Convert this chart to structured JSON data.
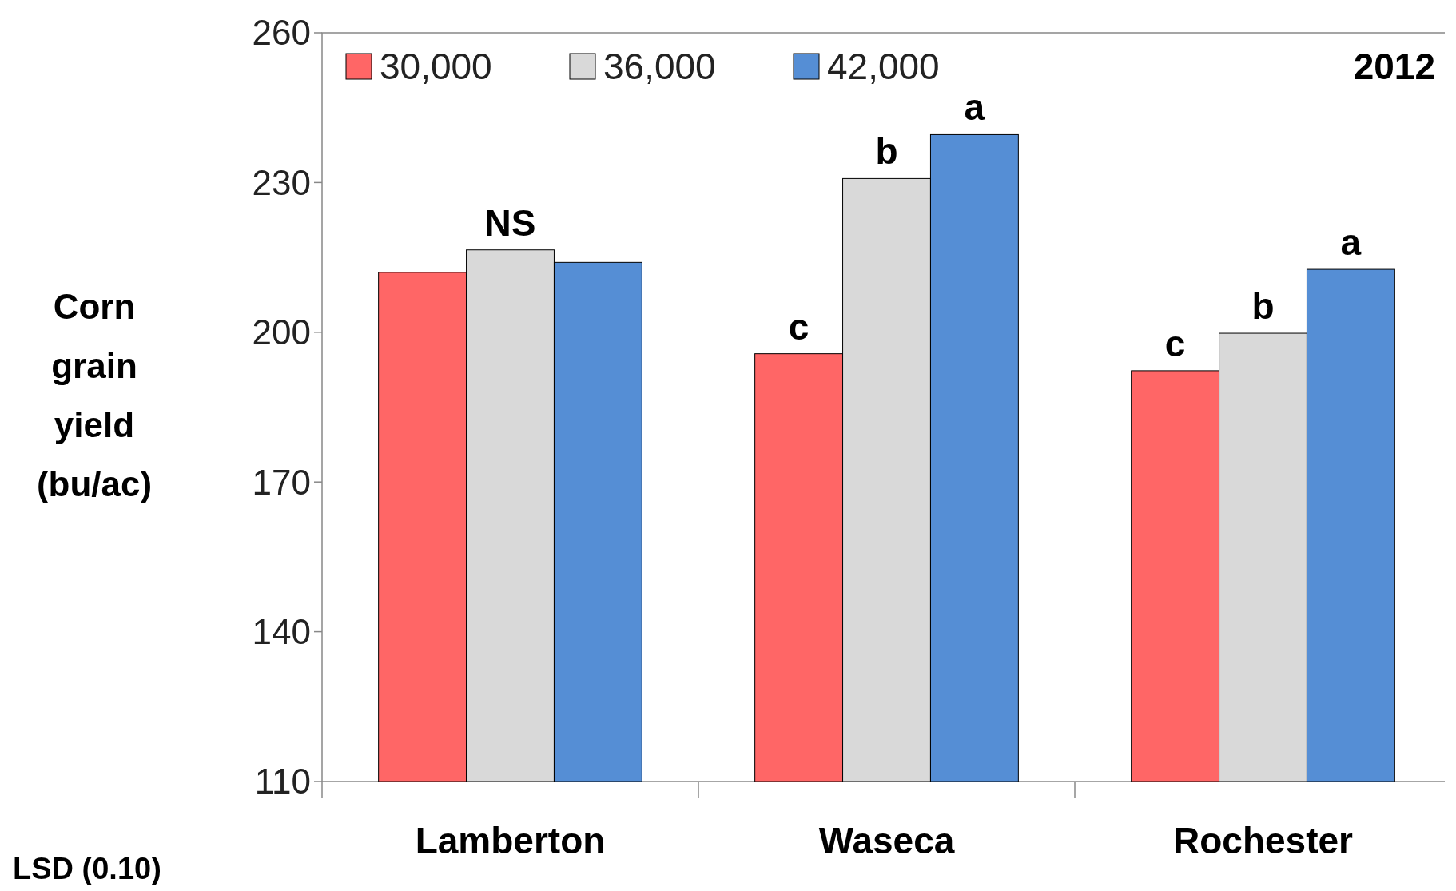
{
  "chart_data": {
    "type": "bar",
    "ylabel": "Corn grain yield (bu/ac)",
    "categories": [
      "Lamberton",
      "Waseca",
      "Rochester"
    ],
    "series": [
      {
        "name": "30,000",
        "color": "#ff6666",
        "values": [
          212,
          195.7,
          192.3
        ],
        "value_labels": [
          null,
          "c",
          "c"
        ]
      },
      {
        "name": "36,000",
        "color": "#d9d9d9",
        "values": [
          216.5,
          230.8,
          199.8
        ],
        "value_labels": [
          "NS",
          "b",
          "b"
        ]
      },
      {
        "name": "42,000",
        "color": "#558ed5",
        "values": [
          214,
          239.6,
          212.6
        ],
        "value_labels": [
          null,
          "a",
          "a"
        ]
      }
    ],
    "ylim": [
      110,
      260
    ],
    "yticks": [
      110,
      140,
      170,
      200,
      230,
      260
    ],
    "grid": false,
    "legend": "top left",
    "annotations": [
      "2012",
      "LSD (0.10)"
    ]
  }
}
